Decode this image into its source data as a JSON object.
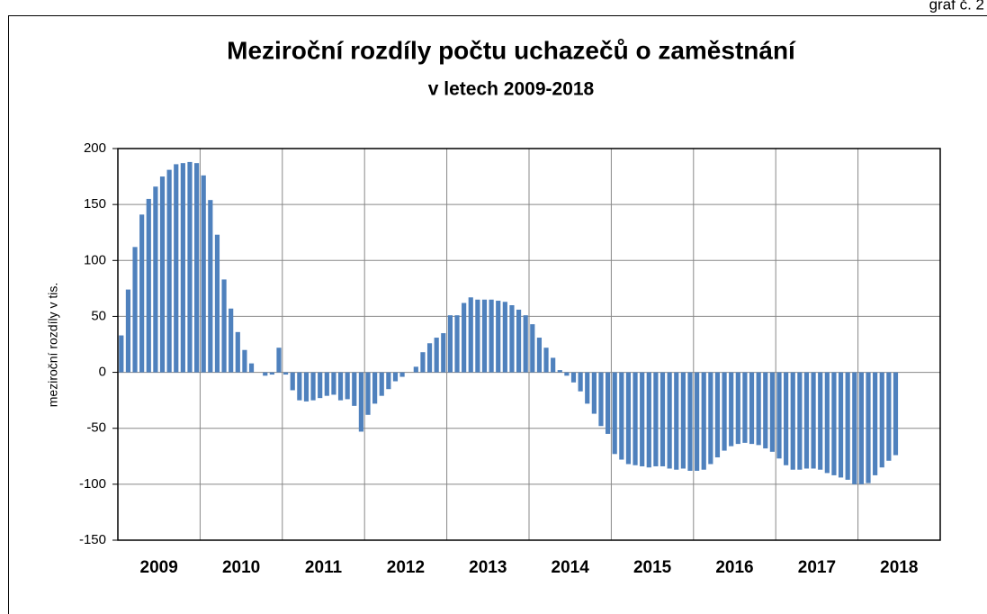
{
  "chart_data": {
    "type": "bar",
    "note_label": "graf č. 2",
    "title": "Meziroční rozdíly počtu uchazečů o zaměstnání",
    "subtitle": "v letech 2009-2018",
    "ylabel": "meziroční rozdíly v tis.",
    "color": "#4f81bd",
    "ylim": [
      -150,
      200
    ],
    "yticks": [
      -150,
      -100,
      -50,
      0,
      50,
      100,
      150,
      200
    ],
    "grid": true,
    "categories": [
      null,
      null,
      null,
      null,
      null,
      null,
      "2009",
      null,
      null,
      null,
      null,
      null,
      null,
      null,
      null,
      null,
      null,
      null,
      "2010",
      null,
      null,
      null,
      null,
      null,
      null,
      null,
      null,
      null,
      null,
      null,
      "2011",
      null,
      null,
      null,
      null,
      null,
      null,
      null,
      null,
      null,
      null,
      null,
      "2012",
      null,
      null,
      null,
      null,
      null,
      null,
      null,
      null,
      null,
      null,
      null,
      "2013",
      null,
      null,
      null,
      null,
      null,
      null,
      null,
      null,
      null,
      null,
      null,
      "2014",
      null,
      null,
      null,
      null,
      null,
      null,
      null,
      null,
      null,
      null,
      null,
      "2015",
      null,
      null,
      null,
      null,
      null,
      null,
      null,
      null,
      null,
      null,
      null,
      "2016",
      null,
      null,
      null,
      null,
      null,
      null,
      null,
      null,
      null,
      null,
      null,
      "2017",
      null,
      null,
      null,
      null,
      null,
      null,
      null,
      null,
      null,
      null,
      null,
      "2018",
      null,
      null,
      null,
      null,
      null
    ],
    "values": [
      33,
      74,
      112,
      141,
      155,
      166,
      175,
      181,
      186,
      187,
      188,
      187,
      176,
      154,
      123,
      83,
      57,
      36,
      20,
      8,
      0,
      -3,
      -2,
      22,
      -2,
      -16,
      -25,
      -26,
      -25,
      -23,
      -21,
      -20,
      -25,
      -24,
      -30,
      -53,
      -38,
      -28,
      -21,
      -15,
      -8,
      -4,
      0,
      5,
      18,
      26,
      31,
      35,
      51,
      51,
      62,
      67,
      65,
      65,
      65,
      64,
      63,
      60,
      56,
      51,
      43,
      31,
      22,
      13,
      2,
      -3,
      -9,
      -17,
      -28,
      -37,
      -48,
      -55,
      -73,
      -78,
      -82,
      -83,
      -84,
      -85,
      -84,
      -84,
      -86,
      -87,
      -86,
      -88,
      -88,
      -87,
      -82,
      -76,
      -70,
      -66,
      -64,
      -63,
      -64,
      -65,
      -68,
      -71,
      -77,
      -83,
      -87,
      -87,
      -86,
      -86,
      -87,
      -90,
      -92,
      -94,
      -96,
      -100,
      -100,
      -99,
      -92,
      -85,
      -79,
      -74,
      null,
      null,
      null,
      null,
      null,
      null
    ]
  }
}
